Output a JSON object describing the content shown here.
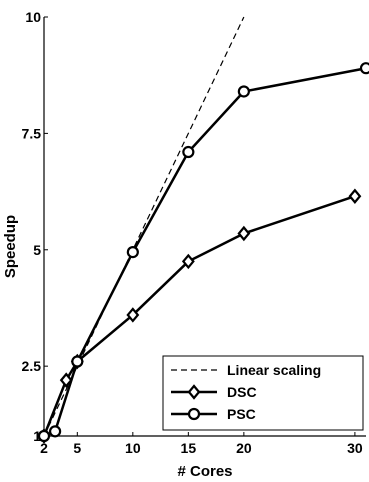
{
  "chart_data": {
    "type": "line",
    "xlabel": "# Cores",
    "ylabel": "Speedup",
    "xlim": [
      2,
      31
    ],
    "ylim": [
      1,
      10
    ],
    "xticks": [
      2,
      5,
      10,
      15,
      20,
      30
    ],
    "yticks": [
      1,
      2.5,
      5,
      7.5,
      10
    ],
    "xtick_labels": [
      "2",
      "5",
      "10",
      "15",
      "20",
      "30"
    ],
    "ytick_labels": [
      "1",
      "2.5",
      "5",
      "7.5",
      "10"
    ],
    "grid": false,
    "legend_position": "bottom-right",
    "series": [
      {
        "name": "Linear scaling",
        "style": "dashed",
        "marker": "none",
        "color": "#000000",
        "x": [
          2,
          20
        ],
        "y": [
          1,
          10
        ]
      },
      {
        "name": "DSC",
        "style": "solid",
        "marker": "diamond",
        "color": "#000000",
        "x": [
          2,
          4,
          5,
          10,
          15,
          20,
          30
        ],
        "y": [
          1.0,
          2.2,
          2.6,
          3.6,
          4.75,
          5.35,
          6.15
        ]
      },
      {
        "name": "PSC",
        "style": "solid",
        "marker": "circle",
        "color": "#000000",
        "x": [
          2,
          3,
          5,
          10,
          15,
          20,
          31
        ],
        "y": [
          1.0,
          1.1,
          2.6,
          4.95,
          7.1,
          8.4,
          8.9
        ]
      }
    ]
  }
}
